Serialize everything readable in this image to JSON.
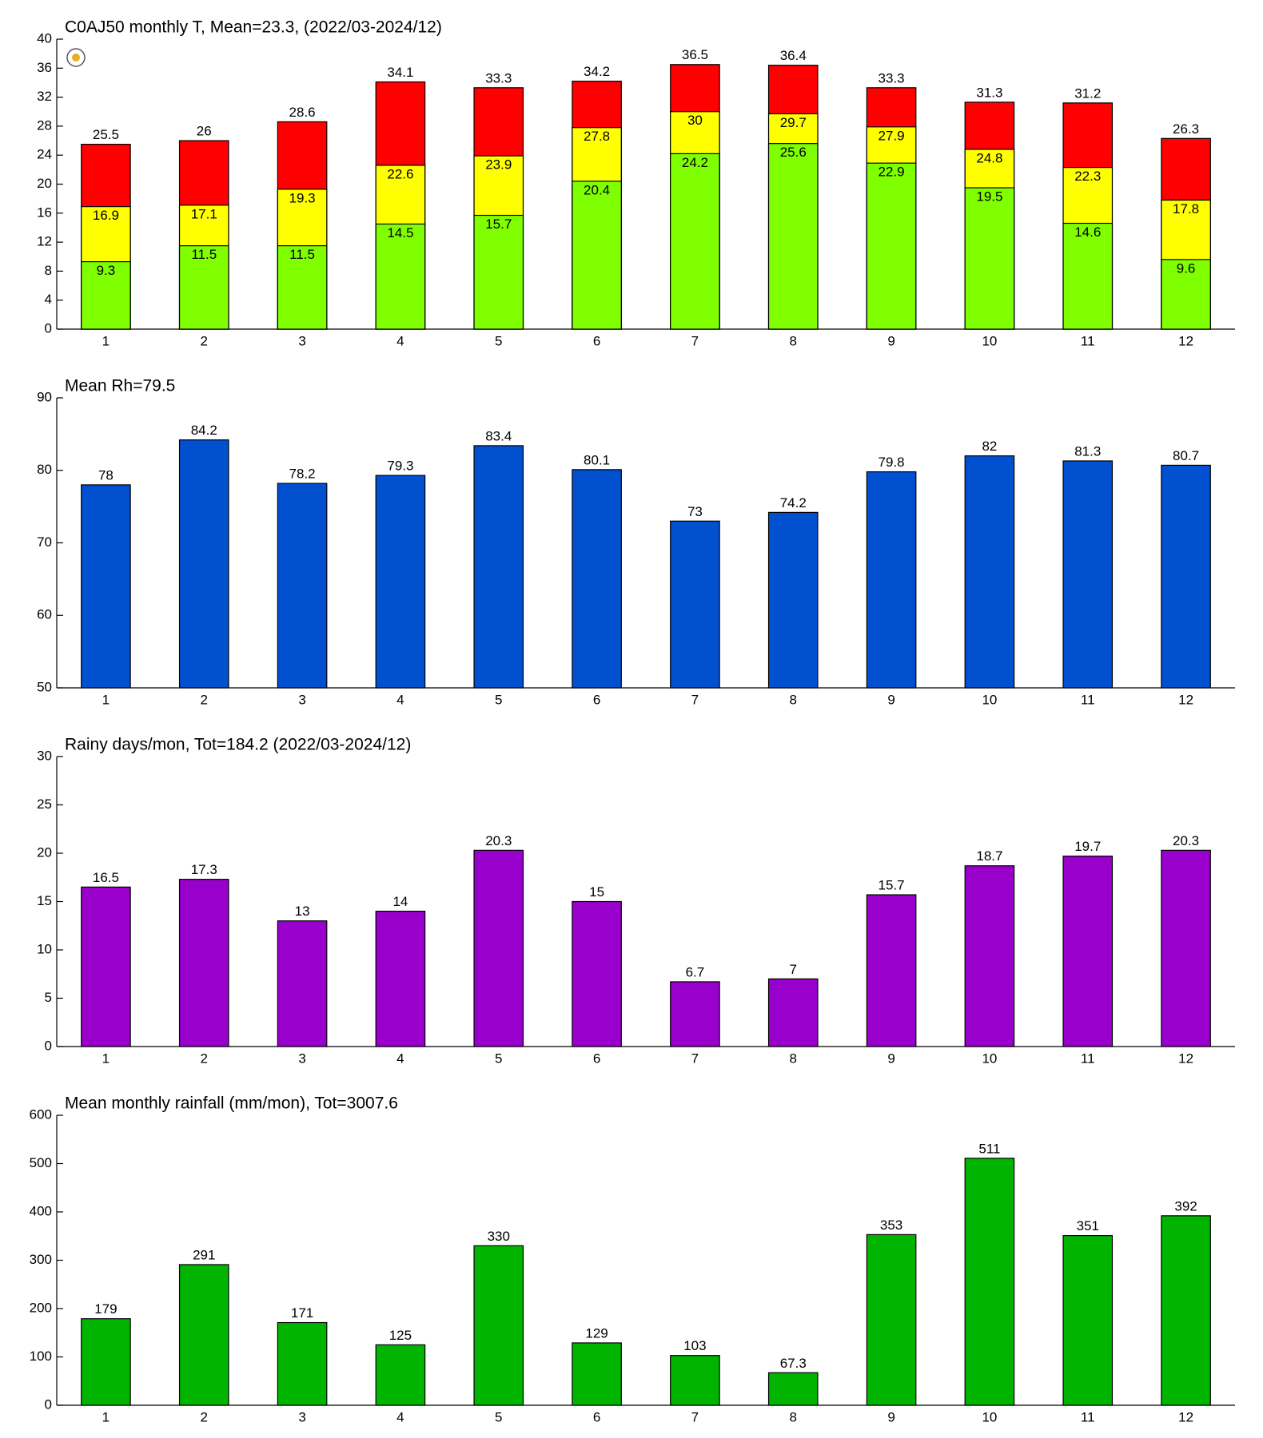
{
  "chart_data": [
    {
      "type": "layered_bar",
      "title": "C0AJ50 monthly T, Mean=23.3, (2022/03-2024/12)",
      "categories": [
        "1",
        "2",
        "3",
        "4",
        "5",
        "6",
        "7",
        "8",
        "9",
        "10",
        "11",
        "12"
      ],
      "series": [
        {
          "color": "#ff0000",
          "values": [
            25.5,
            26,
            28.6,
            34.1,
            33.3,
            34.2,
            36.5,
            36.4,
            33.3,
            31.3,
            31.2,
            26.3
          ]
        },
        {
          "color": "#ffff00",
          "values": [
            16.9,
            17.1,
            19.3,
            22.6,
            23.9,
            27.8,
            30,
            29.7,
            27.9,
            24.8,
            22.3,
            17.8
          ]
        },
        {
          "color": "#80ff00",
          "values": [
            9.3,
            11.5,
            11.5,
            14.5,
            15.7,
            20.4,
            24.2,
            25.6,
            22.9,
            19.5,
            14.6,
            9.6
          ]
        }
      ],
      "ylim": [
        0,
        40
      ],
      "yticks": [
        0,
        4,
        8,
        12,
        16,
        20,
        24,
        28,
        32,
        36,
        40
      ]
    },
    {
      "type": "bar",
      "title": "Mean Rh=79.5",
      "categories": [
        "1",
        "2",
        "3",
        "4",
        "5",
        "6",
        "7",
        "8",
        "9",
        "10",
        "11",
        "12"
      ],
      "values": [
        78,
        84.2,
        78.2,
        79.3,
        83.4,
        80.1,
        73,
        74.2,
        79.8,
        82,
        81.3,
        80.7
      ],
      "color": "#0050d0",
      "ylim": [
        50,
        90
      ],
      "yticks": [
        50,
        60,
        70,
        80,
        90
      ]
    },
    {
      "type": "bar",
      "title": "Rainy days/mon, Tot=184.2 (2022/03-2024/12)",
      "categories": [
        "1",
        "2",
        "3",
        "4",
        "5",
        "6",
        "7",
        "8",
        "9",
        "10",
        "11",
        "12"
      ],
      "values": [
        16.5,
        17.3,
        13,
        14,
        20.3,
        15,
        6.7,
        7,
        15.7,
        18.7,
        19.7,
        20.3
      ],
      "color": "#9900cc",
      "ylim": [
        0,
        30
      ],
      "yticks": [
        0,
        5,
        10,
        15,
        20,
        25,
        30
      ]
    },
    {
      "type": "bar",
      "title": "Mean monthly rainfall (mm/mon), Tot=3007.6",
      "categories": [
        "1",
        "2",
        "3",
        "4",
        "5",
        "6",
        "7",
        "8",
        "9",
        "10",
        "11",
        "12"
      ],
      "values": [
        179,
        291,
        171,
        125,
        330,
        129,
        103,
        67.3,
        353,
        511,
        351,
        392
      ],
      "color": "#00b400",
      "ylim": [
        0,
        600
      ],
      "yticks": [
        0,
        100,
        200,
        300,
        400,
        500,
        600
      ]
    }
  ]
}
